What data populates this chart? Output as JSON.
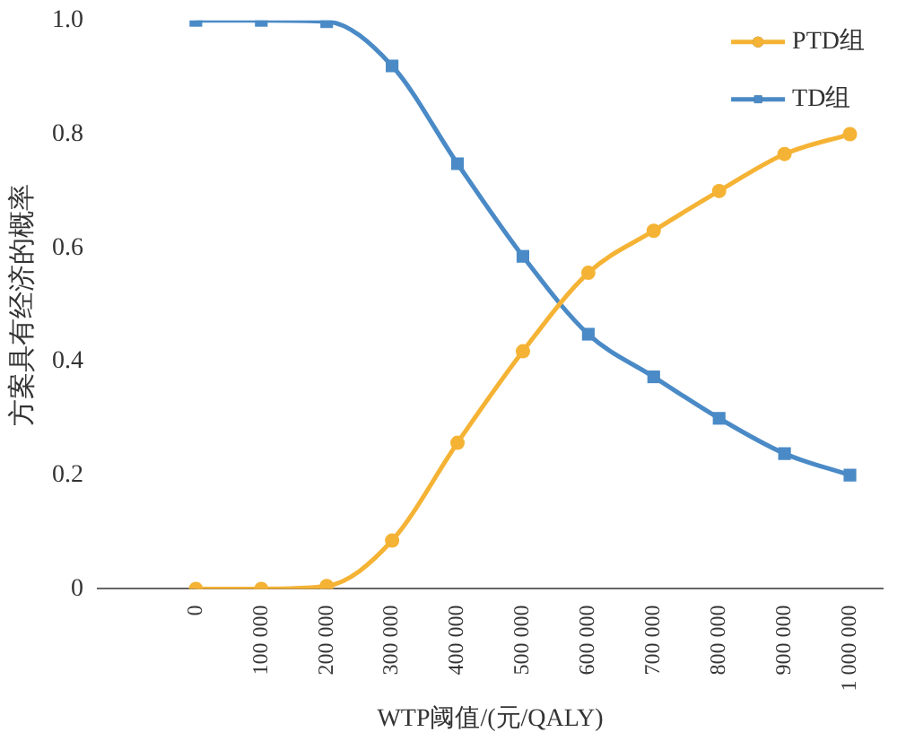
{
  "chart_data": {
    "type": "line",
    "xlabel": "WTP阈值/(元/QALY)",
    "ylabel": "方案具有经济的概率",
    "categories": [
      null,
      "0",
      "100 000",
      "200 000",
      "300 000",
      "400 000",
      "500 000",
      "600 000",
      "700 000",
      "800 000",
      "900 000",
      "1 000 000"
    ],
    "series": [
      {
        "name": "PTD组",
        "color": "#f5b335",
        "marker": "circle",
        "values": [
          null,
          0,
          0,
          0.005,
          0.085,
          0.257,
          0.418,
          0.556,
          0.63,
          0.7,
          0.765,
          0.8
        ]
      },
      {
        "name": "TD组",
        "color": "#4a8ac6",
        "marker": "square",
        "values": [
          null,
          1,
          1,
          0.998,
          0.92,
          0.748,
          0.585,
          0.448,
          0.373,
          0.3,
          0.238,
          0.2
        ]
      }
    ],
    "ylim": [
      0,
      1
    ],
    "yticks": [
      0,
      {
        "value": 0.2,
        "label": "0.2"
      },
      {
        "value": 0.4,
        "label": "0.4"
      },
      {
        "value": 0.6,
        "label": "0.6"
      },
      {
        "value": 0.8,
        "label": "0.8"
      },
      {
        "value": 1,
        "label": "1.0"
      }
    ],
    "grid": false,
    "legend": "top right",
    "line_style": "solid"
  }
}
